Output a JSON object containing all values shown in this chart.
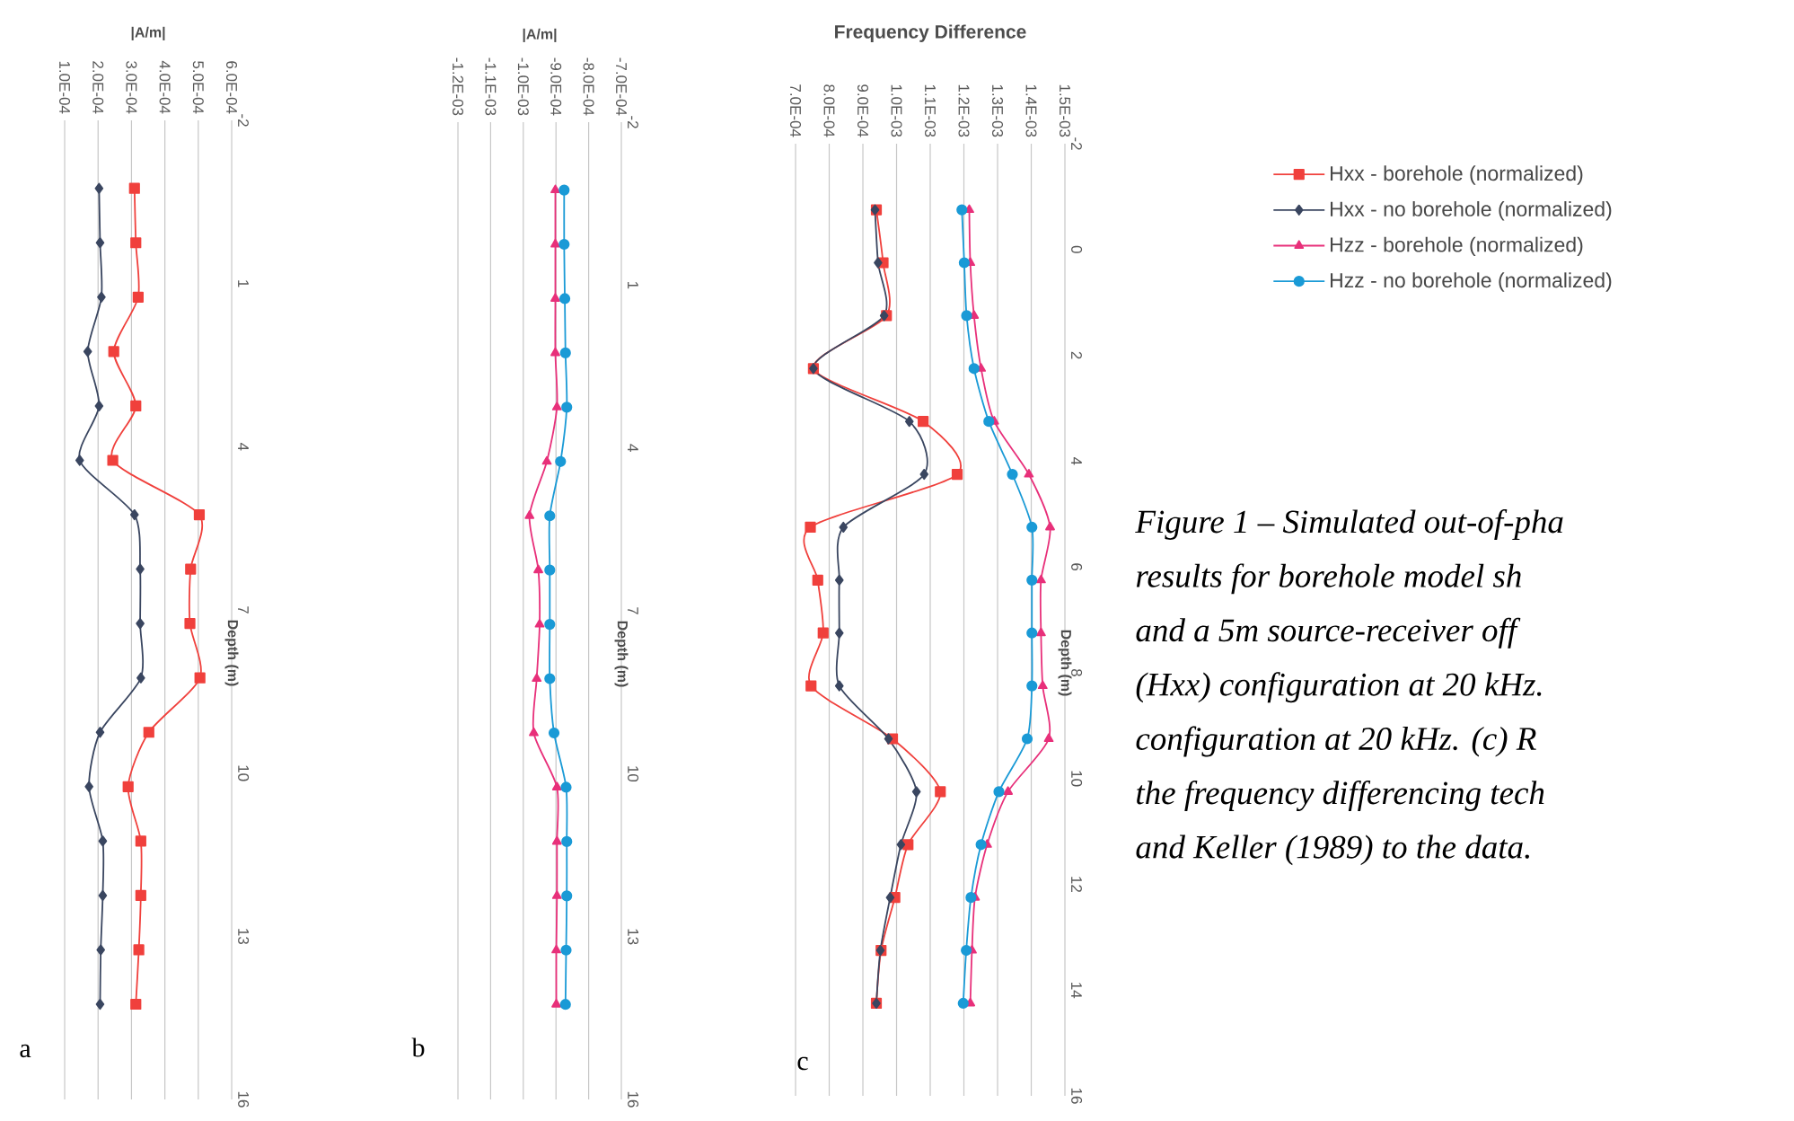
{
  "chart_data": [
    {
      "type": "line",
      "xlabel": "|A/m|",
      "ylabel": "Depth (m)",
      "xlim": [
        0.0001,
        0.0006
      ],
      "ylim": [
        16,
        -2
      ],
      "xticks": [
        {
          "value": 0.0001,
          "label": "1.0E-04"
        },
        {
          "value": 0.0002,
          "label": "2.0E-04"
        },
        {
          "value": 0.0003,
          "label": "3.0E-04"
        },
        {
          "value": 0.0004,
          "label": "4.0E-04"
        },
        {
          "value": 0.0005,
          "label": "5.0E-04"
        },
        {
          "value": 0.0006,
          "label": "6.0E-04"
        }
      ],
      "yticks": [
        -2,
        1,
        4,
        7,
        10,
        13,
        16
      ],
      "grid": "x",
      "annotations": [
        "a"
      ],
      "series": [
        {
          "color": "#f0403c",
          "marker": "square",
          "values": [
            -0.75,
            0.25,
            1.25,
            2.25,
            3.25,
            4.25,
            5.25,
            6.25,
            7.25,
            8.25,
            9.25,
            10.25,
            11.25,
            12.25,
            13.25,
            14.25
          ],
          "x": [
            0.000309,
            0.000313,
            0.00032,
            0.000247,
            0.000313,
            0.000244,
            0.000503,
            0.000477,
            0.000475,
            0.000505,
            0.000352,
            0.00029,
            0.000328,
            0.000328,
            0.000322,
            0.000313
          ]
        },
        {
          "color": "#3a4660",
          "marker": "diamond",
          "values": [
            -0.75,
            0.25,
            1.25,
            2.25,
            3.25,
            4.25,
            5.25,
            6.25,
            7.25,
            8.25,
            9.25,
            10.25,
            11.25,
            12.25,
            13.25,
            14.25
          ],
          "x": [
            0.000203,
            0.000206,
            0.00021,
            0.000169,
            0.000203,
            0.000145,
            0.000309,
            0.000326,
            0.000326,
            0.000328,
            0.000206,
            0.000173,
            0.000214,
            0.000214,
            0.000208,
            0.000206
          ]
        }
      ]
    },
    {
      "type": "line",
      "xlabel": "|A/m|",
      "ylabel": "Depth (m)",
      "xlim": [
        -0.0012,
        -0.0007
      ],
      "ylim": [
        16,
        -2
      ],
      "xticks": [
        {
          "value": -0.0012,
          "label": "-1.2E-03"
        },
        {
          "value": -0.0011,
          "label": "-1.1E-03"
        },
        {
          "value": -0.001,
          "label": "-1.0E-03"
        },
        {
          "value": -0.0009,
          "label": "-9.0E-04"
        },
        {
          "value": -0.0008,
          "label": "-8.0E-04"
        },
        {
          "value": -0.0007,
          "label": "-7.0E-04"
        }
      ],
      "yticks": [
        -2,
        1,
        4,
        7,
        10,
        13,
        16
      ],
      "grid": "x",
      "annotations": [
        "b"
      ],
      "series": [
        {
          "color": "#e8307a",
          "marker": "triangle",
          "values": [
            -0.75,
            0.25,
            1.25,
            2.25,
            3.25,
            4.25,
            5.25,
            6.25,
            7.25,
            8.25,
            9.25,
            10.25,
            11.25,
            12.25,
            13.25,
            14.25
          ],
          "x": [
            -0.000902,
            -0.000902,
            -0.000902,
            -0.000902,
            -0.000897,
            -0.000928,
            -0.000981,
            -0.000954,
            -0.00095,
            -0.000959,
            -0.000968,
            -0.000897,
            -0.000897,
            -0.000897,
            -0.000899,
            -0.000899
          ]
        },
        {
          "color": "#1a9ad6",
          "marker": "circle",
          "values": [
            -0.75,
            0.25,
            1.25,
            2.25,
            3.25,
            4.25,
            5.25,
            6.25,
            7.25,
            8.25,
            9.25,
            10.25,
            11.25,
            12.25,
            13.25,
            14.25
          ],
          "x": [
            -0.000875,
            -0.000875,
            -0.000873,
            -0.000871,
            -0.000867,
            -0.000886,
            -0.000919,
            -0.000919,
            -0.000919,
            -0.000919,
            -0.000906,
            -0.000869,
            -0.000867,
            -0.000867,
            -0.000869,
            -0.000871
          ]
        }
      ]
    },
    {
      "type": "line",
      "title": "Frequency Difference",
      "ylabel": "Depth (m)",
      "xlim": [
        0.0007,
        0.0015
      ],
      "ylim": [
        16,
        -2
      ],
      "xticks": [
        {
          "value": 0.0007,
          "label": "7.0E-04"
        },
        {
          "value": 0.0008,
          "label": "8.0E-04"
        },
        {
          "value": 0.0009,
          "label": "9.0E-04"
        },
        {
          "value": 0.001,
          "label": "1.0E-03"
        },
        {
          "value": 0.0011,
          "label": "1.1E-03"
        },
        {
          "value": 0.0012,
          "label": "1.2E-03"
        },
        {
          "value": 0.0013,
          "label": "1.3E-03"
        },
        {
          "value": 0.0014,
          "label": "1.4E-03"
        },
        {
          "value": 0.0015,
          "label": "1.5E-03"
        }
      ],
      "yticks": [
        -2,
        0,
        2,
        4,
        6,
        8,
        10,
        12,
        14,
        16
      ],
      "grid": "x",
      "legend": "right",
      "annotations": [
        "c",
        "Figure 1 – Simulated out-of-pha",
        "results for borehole model sh",
        "and a 5m source-receiver off",
        "(Hxx) configuration at 20 kHz.",
        "configuration at 20 kHz. (c) R",
        "the frequency differencing tech",
        "and Keller (1989) to the data."
      ],
      "series": [
        {
          "name": "Hxx - borehole (normalized)",
          "color": "#f0403c",
          "marker": "square",
          "values": [
            -0.75,
            0.25,
            1.25,
            2.25,
            3.25,
            4.25,
            5.25,
            6.25,
            7.25,
            8.25,
            9.25,
            10.25,
            11.25,
            12.25,
            13.25,
            14.25
          ],
          "x": [
            0.00094,
            0.00096,
            0.00097,
            0.000753,
            0.001079,
            0.00118,
            0.000744,
            0.000766,
            0.000782,
            0.000746,
            0.000988,
            0.00113,
            0.001034,
            0.000995,
            0.000954,
            0.00094
          ]
        },
        {
          "name": "Hxx - no borehole (normalized)",
          "color": "#3a4660",
          "marker": "diamond",
          "values": [
            -0.75,
            0.25,
            1.25,
            2.25,
            3.25,
            4.25,
            5.25,
            6.25,
            7.25,
            8.25,
            9.25,
            10.25,
            11.25,
            12.25,
            13.25,
            14.25
          ],
          "x": [
            0.000936,
            0.000945,
            0.000963,
            0.000753,
            0.001038,
            0.001082,
            0.000842,
            0.00083,
            0.00083,
            0.00083,
            0.000976,
            0.001059,
            0.001013,
            0.000981,
            0.000952,
            0.00094
          ]
        },
        {
          "name": "Hzz - borehole (normalized)",
          "color": "#e8307a",
          "marker": "triangle",
          "values": [
            -0.75,
            0.25,
            1.25,
            2.25,
            3.25,
            4.25,
            5.25,
            6.25,
            7.25,
            8.25,
            9.25,
            10.25,
            11.25,
            12.25,
            13.25,
            14.25
          ],
          "x": [
            0.001216,
            0.001219,
            0.00123,
            0.001251,
            0.00129,
            0.001393,
            0.001456,
            0.001429,
            0.001429,
            0.001434,
            0.001452,
            0.001331,
            0.001269,
            0.001233,
            0.001224,
            0.001219
          ]
        },
        {
          "name": "Hzz - no borehole (normalized)",
          "color": "#1a9ad6",
          "marker": "circle",
          "values": [
            -0.75,
            0.25,
            1.25,
            2.25,
            3.25,
            4.25,
            5.25,
            6.25,
            7.25,
            8.25,
            9.25,
            10.25,
            11.25,
            12.25,
            13.25,
            14.25
          ],
          "x": [
            0.001194,
            0.001201,
            0.001208,
            0.00123,
            0.001274,
            0.001344,
            0.001402,
            0.001402,
            0.001402,
            0.001402,
            0.001388,
            0.001304,
            0.001251,
            0.001221,
            0.001207,
            0.001198
          ]
        }
      ]
    }
  ]
}
